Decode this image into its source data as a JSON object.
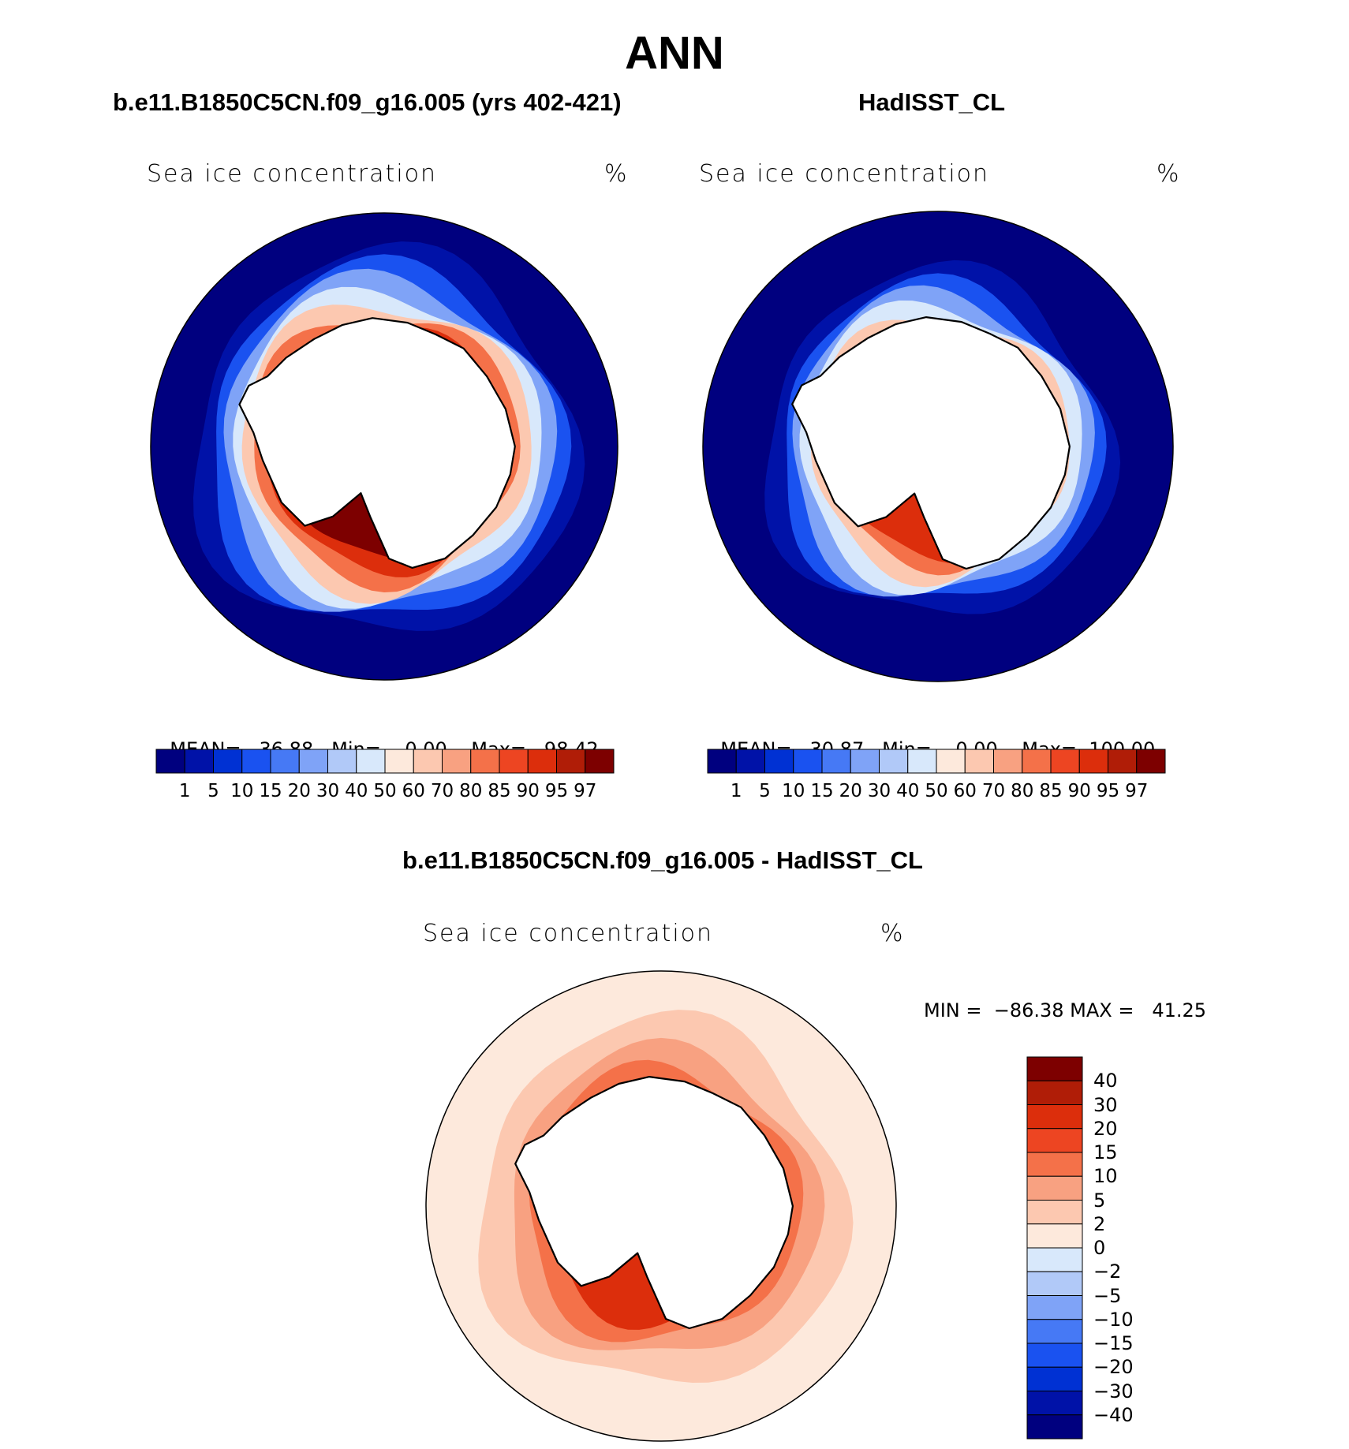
{
  "figure": {
    "title": "ANN"
  },
  "panels": [
    {
      "id": "model",
      "title": "b.e11.B1850C5CN.f09_g16.005 (yrs 402-421)",
      "var_label": "Sea ice concentration",
      "units": "%",
      "stats": {
        "mean_label": "MEAN=",
        "mean": "36.88",
        "min_label": "Min=",
        "min": "0.00",
        "max_label": "Max=",
        "max": "98.42"
      }
    },
    {
      "id": "obs",
      "title": "HadISST_CL",
      "var_label": "Sea ice concentration",
      "units": "%",
      "stats": {
        "mean_label": "MEAN=",
        "mean": "30.87",
        "min_label": "Min=",
        "min": "0.00",
        "max_label": "Max=",
        "max": "100.00"
      }
    },
    {
      "id": "diff",
      "title": "b.e11.B1850C5CN.f09_g16.005 - HadISST_CL",
      "var_label": "Sea ice concentration",
      "units": "%",
      "stats": {
        "text": "MIN =  −86.38 MAX =   41.25"
      }
    }
  ],
  "chart_data": [
    {
      "type": "heatmap",
      "projection": "south-polar-stereographic",
      "title": "b.e11.B1850C5CN.f09_g16.005 (yrs 402-421)",
      "variable": "Sea ice concentration",
      "units": "%",
      "mean": 36.88,
      "min": 0.0,
      "max": 98.42,
      "colorbar": {
        "orientation": "horizontal",
        "levels": [
          "1",
          "5",
          "10",
          "15",
          "20",
          "30",
          "40",
          "50",
          "60",
          "70",
          "80",
          "85",
          "90",
          "95",
          "97"
        ],
        "colors": [
          "#00007f",
          "#0012a8",
          "#0031d3",
          "#1a52f0",
          "#4679f5",
          "#7fa3f7",
          "#b1c9f8",
          "#d8e8fb",
          "#fde9dc",
          "#fcc8b0",
          "#f8a181",
          "#f47149",
          "#ed4522",
          "#dc2e0c",
          "#b01d07",
          "#7d0000"
        ]
      },
      "ice_edge_rings": [
        {
          "value": 97,
          "radius": 0.47
        },
        {
          "value": 90,
          "radius": 0.52
        },
        {
          "value": 80,
          "radius": 0.57
        },
        {
          "value": 60,
          "radius": 0.62
        },
        {
          "value": 40,
          "radius": 0.66
        },
        {
          "value": 20,
          "radius": 0.71
        },
        {
          "value": 10,
          "radius": 0.76
        },
        {
          "value": 1,
          "radius": 0.82
        }
      ]
    },
    {
      "type": "heatmap",
      "projection": "south-polar-stereographic",
      "title": "HadISST_CL",
      "variable": "Sea ice concentration",
      "units": "%",
      "mean": 30.87,
      "min": 0.0,
      "max": 100.0,
      "colorbar": {
        "orientation": "horizontal",
        "levels": [
          "1",
          "5",
          "10",
          "15",
          "20",
          "30",
          "40",
          "50",
          "60",
          "70",
          "80",
          "85",
          "90",
          "95",
          "97"
        ],
        "colors": [
          "#00007f",
          "#0012a8",
          "#0031d3",
          "#1a52f0",
          "#4679f5",
          "#7fa3f7",
          "#b1c9f8",
          "#d8e8fb",
          "#fde9dc",
          "#fcc8b0",
          "#f8a181",
          "#f47149",
          "#ed4522",
          "#dc2e0c",
          "#b01d07",
          "#7d0000"
        ]
      },
      "ice_edge_rings": [
        {
          "value": 90,
          "radius": 0.46
        },
        {
          "value": 80,
          "radius": 0.5
        },
        {
          "value": 60,
          "radius": 0.55
        },
        {
          "value": 40,
          "radius": 0.6
        },
        {
          "value": 20,
          "radius": 0.64
        },
        {
          "value": 10,
          "radius": 0.68
        },
        {
          "value": 1,
          "radius": 0.74
        }
      ]
    },
    {
      "type": "heatmap",
      "projection": "south-polar-stereographic",
      "title": "b.e11.B1850C5CN.f09_g16.005 - HadISST_CL",
      "variable": "Sea ice concentration",
      "units": "%",
      "min": -86.38,
      "max": 41.25,
      "colorbar": {
        "orientation": "vertical",
        "levels": [
          "40",
          "30",
          "20",
          "15",
          "10",
          "5",
          "2",
          "0",
          "−2",
          "−5",
          "−10",
          "−15",
          "−20",
          "−30",
          "−40"
        ],
        "colors": [
          "#7d0000",
          "#b01d07",
          "#dc2e0c",
          "#ed4522",
          "#f47149",
          "#f8a181",
          "#fcc8b0",
          "#fde9dc",
          "#d8e8fb",
          "#b1c9f8",
          "#7fa3f7",
          "#4679f5",
          "#1a52f0",
          "#0031d3",
          "#0012a8",
          "#00007f"
        ]
      },
      "ice_edge_rings": [
        {
          "value": 20,
          "radius": 0.5
        },
        {
          "value": 10,
          "radius": 0.58
        },
        {
          "value": 5,
          "radius": 0.66
        },
        {
          "value": 2,
          "radius": 0.78
        }
      ]
    }
  ]
}
